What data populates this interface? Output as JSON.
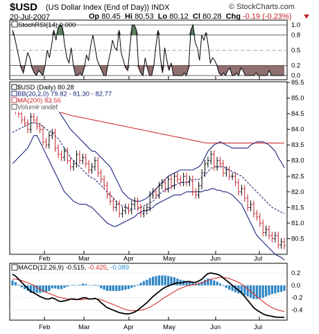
{
  "header": {
    "symbol": "$USD",
    "description": "(US Dollar Index (End of Day))",
    "exchange": "INDX",
    "brand": "© StockCharts.com",
    "date": "20-Jul-2007",
    "open_label": "Op",
    "open": "80.45",
    "high_label": "Hi",
    "high": "80.53",
    "low_label": "Lo",
    "low": "80.12",
    "close_label": "Cl",
    "close": "80.28",
    "chg_label": "Chg",
    "chg": "-0.19 (-0.23%)",
    "chg_color": "#c0202a"
  },
  "chart_data": [
    {
      "panel": "stochrsi",
      "type": "line",
      "legend": "StochRSI(14) 0.000",
      "ylim": [
        0,
        1
      ],
      "yticks": [
        1.0,
        0.8,
        0.5,
        0.2,
        0.0
      ],
      "ytick_labels": [
        "1.0",
        "0.8",
        "0.5",
        "0.2",
        "0.0"
      ],
      "upper_band": 0.8,
      "lower_band": 0.2,
      "fill_over": "#5f7f5f",
      "fill_under": "#8f6f6f",
      "values": [
        0.9,
        0.75,
        0.55,
        0.35,
        0.15,
        0.05,
        0.25,
        0.45,
        0.35,
        0.15,
        0.05,
        0.0,
        0.1,
        0.05,
        0.0,
        0.2,
        0.5,
        0.35,
        0.6,
        0.9,
        0.7,
        0.95,
        1.0,
        0.95,
        0.6,
        0.35,
        0.25,
        0.55,
        0.2,
        0.0,
        0.0,
        0.05,
        0.0,
        0.15,
        0.4,
        0.3,
        0.6,
        0.8,
        0.55,
        0.3,
        0.2,
        0.1,
        0.0,
        0.0,
        0.25,
        0.45,
        0.7,
        0.55,
        0.5,
        0.9,
        0.45,
        0.3,
        0.15,
        0.1,
        0.55,
        1.0,
        1.0,
        0.9,
        0.15,
        0.05,
        0.0,
        0.35,
        0.15,
        0.0,
        0.0,
        0.2,
        0.6,
        0.9,
        0.35,
        0.05,
        0.55,
        0.3,
        0.1,
        0.25,
        0.0,
        0.0,
        0.0,
        0.0,
        0.0,
        0.05,
        0.0,
        0.15,
        0.9,
        1.0,
        0.65,
        0.55,
        0.3,
        0.8,
        0.7,
        0.85,
        0.6,
        0.25,
        0.35,
        0.3,
        0.2,
        0.05,
        0.0,
        0.05,
        0.0,
        0.1,
        0.15,
        0.0,
        0.0,
        0.05,
        0.0,
        0.15,
        0.1,
        0.0,
        0.0,
        0.0,
        0.0,
        0.0,
        0.05,
        0.0,
        0.0,
        0.0,
        0.0,
        0.0,
        0.1,
        0.0,
        0.0,
        0.0,
        0.0,
        0.0,
        0.0,
        0.0
      ]
    },
    {
      "panel": "price",
      "type": "ohlc",
      "legend": [
        "$USD (Daily) 80.28",
        "BB(20,2.0) 79.82 - 81.30 - 82.77",
        "MA(200) 83.56",
        "Volume undef"
      ],
      "legend_colors": [
        "#000000",
        "#1a237e",
        "#d32f2f",
        "#555555"
      ],
      "ylim": [
        80.0,
        85.5
      ],
      "yticks": [
        85.5,
        85.0,
        84.5,
        84.0,
        83.5,
        83.0,
        82.5,
        82.0,
        81.5,
        81.0,
        80.5
      ],
      "ytick_labels": [
        "85.5",
        "85.0",
        "84.5",
        "84.0",
        "83.5",
        "83.0",
        "82.5",
        "82.0",
        "81.5",
        "81.0",
        "80.5"
      ],
      "x_labels": [
        "Feb",
        "Mar",
        "Apr",
        "May",
        "Jun",
        "Jul"
      ],
      "close": [
        84.8,
        84.6,
        84.5,
        84.3,
        84.2,
        84.0,
        84.4,
        84.3,
        84.1,
        84.0,
        83.6,
        83.5,
        83.8,
        83.9,
        83.4,
        83.2,
        83.1,
        83.3,
        83.0,
        82.8,
        82.9,
        83.2,
        83.0,
        83.1,
        82.9,
        82.7,
        82.8,
        83.0,
        82.6,
        82.4,
        82.2,
        81.9,
        81.7,
        81.5,
        81.6,
        81.3,
        81.4,
        81.5,
        81.4,
        81.6,
        81.7,
        81.5,
        81.3,
        81.4,
        81.5,
        81.9,
        82.0,
        81.9,
        82.2,
        82.3,
        82.1,
        82.4,
        82.2,
        82.5,
        82.4,
        82.3,
        82.5,
        82.3,
        82.4,
        82.0,
        81.9,
        82.2,
        82.6,
        82.9,
        83.0,
        83.2,
        82.8,
        83.0,
        82.9,
        82.6,
        82.7,
        82.5,
        82.5,
        82.3,
        82.0,
        82.1,
        81.8,
        81.5,
        81.6,
        81.3,
        81.2,
        81.0,
        80.7,
        80.8,
        80.6,
        80.5,
        80.6,
        80.3,
        80.4,
        80.28
      ],
      "ma200": [
        85.0,
        84.97,
        84.95,
        84.92,
        84.9,
        84.87,
        84.84,
        84.81,
        84.78,
        84.75,
        84.72,
        84.69,
        84.66,
        84.63,
        84.6,
        84.57,
        84.54,
        84.51,
        84.48,
        84.45,
        84.43,
        84.41,
        84.39,
        84.37,
        84.35,
        84.33,
        84.31,
        84.29,
        84.27,
        84.25,
        84.23,
        84.21,
        84.19,
        84.17,
        84.15,
        84.13,
        84.11,
        84.09,
        84.07,
        84.05,
        84.03,
        84.01,
        83.99,
        83.97,
        83.95,
        83.93,
        83.91,
        83.89,
        83.87,
        83.85,
        83.83,
        83.81,
        83.79,
        83.77,
        83.75,
        83.73,
        83.71,
        83.69,
        83.67,
        83.65,
        83.63,
        83.61,
        83.59,
        83.57,
        83.56,
        83.56,
        83.56,
        83.56,
        83.56,
        83.56,
        83.56,
        83.56,
        83.56,
        83.56,
        83.56,
        83.56,
        83.56,
        83.56,
        83.56,
        83.56,
        83.56,
        83.56,
        83.56,
        83.56,
        83.56,
        83.56,
        83.56,
        83.56,
        83.56,
        83.56
      ],
      "bb_upper": [
        84.9,
        84.9,
        84.9,
        84.95,
        85.0,
        85.05,
        85.1,
        85.1,
        85.1,
        85.1,
        85.05,
        85.0,
        84.9,
        84.8,
        84.7,
        84.6,
        84.45,
        84.3,
        84.15,
        84.0,
        83.9,
        83.8,
        83.7,
        83.6,
        83.5,
        83.4,
        83.3,
        83.3,
        83.2,
        83.1,
        83.0,
        82.9,
        82.8,
        82.6,
        82.4,
        82.2,
        82.0,
        81.9,
        81.8,
        81.75,
        81.7,
        81.7,
        81.7,
        81.75,
        81.8,
        81.9,
        82.0,
        82.1,
        82.2,
        82.3,
        82.4,
        82.5,
        82.55,
        82.6,
        82.65,
        82.7,
        82.7,
        82.7,
        82.7,
        82.7,
        82.75,
        82.8,
        82.9,
        83.1,
        83.3,
        83.4,
        83.5,
        83.55,
        83.6,
        83.55,
        83.5,
        83.45,
        83.4,
        83.4,
        83.4,
        83.4,
        83.4,
        83.4,
        83.5,
        83.55,
        83.6,
        83.6,
        83.6,
        83.55,
        83.5,
        83.4,
        83.3,
        83.1,
        82.95,
        82.77
      ],
      "bb_lower": [
        82.9,
        83.0,
        83.1,
        83.2,
        83.3,
        83.4,
        83.6,
        83.8,
        83.8,
        83.6,
        83.4,
        83.2,
        83.0,
        82.8,
        82.6,
        82.4,
        82.2,
        82.0,
        81.9,
        81.8,
        81.7,
        81.65,
        81.6,
        81.6,
        81.6,
        81.55,
        81.5,
        81.4,
        81.3,
        81.2,
        81.1,
        81.0,
        80.95,
        80.9,
        80.9,
        80.95,
        81.0,
        81.05,
        81.1,
        81.15,
        81.2,
        81.3,
        81.35,
        81.4,
        81.4,
        81.45,
        81.5,
        81.6,
        81.65,
        81.7,
        81.75,
        81.8,
        81.85,
        81.9,
        81.9,
        81.9,
        81.95,
        82.0,
        82.0,
        82.0,
        82.0,
        82.0,
        82.0,
        82.05,
        82.05,
        82.1,
        82.1,
        82.05,
        82.05,
        82.0,
        82.0,
        81.95,
        81.9,
        81.8,
        81.7,
        81.6,
        81.4,
        81.2,
        81.0,
        80.8,
        80.6,
        80.5,
        80.4,
        80.3,
        80.2,
        80.1,
        80.0,
        79.95,
        79.9,
        79.82
      ],
      "bb_mid": [
        83.9,
        83.95,
        84.0,
        84.05,
        84.1,
        84.15,
        84.2,
        84.2,
        84.2,
        84.15,
        84.1,
        84.0,
        83.95,
        83.9,
        83.8,
        83.7,
        83.55,
        83.4,
        83.25,
        83.1,
        83.0,
        82.9,
        82.8,
        82.7,
        82.6,
        82.5,
        82.45,
        82.4,
        82.3,
        82.2,
        82.1,
        82.0,
        81.9,
        81.8,
        81.7,
        81.6,
        81.55,
        81.5,
        81.45,
        81.45,
        81.45,
        81.45,
        81.5,
        81.55,
        81.6,
        81.65,
        81.7,
        81.8,
        81.9,
        82.0,
        82.05,
        82.1,
        82.15,
        82.2,
        82.25,
        82.3,
        82.3,
        82.3,
        82.35,
        82.35,
        82.4,
        82.4,
        82.45,
        82.55,
        82.65,
        82.75,
        82.8,
        82.8,
        82.8,
        82.8,
        82.75,
        82.7,
        82.65,
        82.6,
        82.55,
        82.5,
        82.4,
        82.3,
        82.2,
        82.1,
        82.0,
        81.9,
        81.8,
        81.7,
        81.6,
        81.5,
        81.45,
        81.4,
        81.35,
        81.3
      ]
    },
    {
      "panel": "macd",
      "type": "line",
      "legend_prefix": "MACD(12,26,9)",
      "legend_values": [
        "-0.515",
        "-0.425",
        "-0.089"
      ],
      "legend_colors": [
        "#000000",
        "#d32f2f",
        "#1f8fc7"
      ],
      "ylim": [
        -0.55,
        0.3
      ],
      "yticks": [
        0.2,
        0.0,
        -0.2,
        -0.4
      ],
      "ytick_labels": [
        "0.2",
        "0.0",
        "-0.2",
        "-0.4"
      ],
      "x_labels": [
        "Feb",
        "Mar",
        "Apr",
        "May",
        "Jun",
        "Jul"
      ],
      "macd": [
        0.18,
        0.15,
        0.1,
        0.05,
        0.0,
        -0.05,
        -0.1,
        -0.12,
        -0.15,
        -0.18,
        -0.2,
        -0.22,
        -0.22,
        -0.2,
        -0.22,
        -0.25,
        -0.26,
        -0.25,
        -0.24,
        -0.22,
        -0.22,
        -0.23,
        -0.22,
        -0.2,
        -0.2,
        -0.22,
        -0.22,
        -0.21,
        -0.23,
        -0.28,
        -0.32,
        -0.36,
        -0.38,
        -0.4,
        -0.42,
        -0.44,
        -0.45,
        -0.46,
        -0.46,
        -0.45,
        -0.43,
        -0.4,
        -0.36,
        -0.32,
        -0.28,
        -0.23,
        -0.18,
        -0.14,
        -0.1,
        -0.06,
        -0.03,
        -0.01,
        0.01,
        0.03,
        0.04,
        0.04,
        0.05,
        0.06,
        0.06,
        0.05,
        0.05,
        0.07,
        0.1,
        0.15,
        0.19,
        0.2,
        0.19,
        0.18,
        0.16,
        0.12,
        0.08,
        0.04,
        0.0,
        -0.04,
        -0.08,
        -0.12,
        -0.18,
        -0.24,
        -0.3,
        -0.36,
        -0.4,
        -0.43,
        -0.46,
        -0.48,
        -0.49,
        -0.5,
        -0.51,
        -0.515,
        -0.515,
        -0.515
      ],
      "signal": [
        0.1,
        0.1,
        0.09,
        0.08,
        0.06,
        0.04,
        0.02,
        0.0,
        -0.03,
        -0.06,
        -0.09,
        -0.11,
        -0.13,
        -0.15,
        -0.17,
        -0.19,
        -0.2,
        -0.21,
        -0.22,
        -0.22,
        -0.23,
        -0.23,
        -0.23,
        -0.23,
        -0.22,
        -0.22,
        -0.22,
        -0.22,
        -0.22,
        -0.23,
        -0.25,
        -0.27,
        -0.29,
        -0.31,
        -0.33,
        -0.35,
        -0.37,
        -0.39,
        -0.4,
        -0.41,
        -0.41,
        -0.41,
        -0.4,
        -0.39,
        -0.37,
        -0.35,
        -0.32,
        -0.29,
        -0.26,
        -0.22,
        -0.19,
        -0.16,
        -0.13,
        -0.1,
        -0.07,
        -0.05,
        -0.03,
        -0.01,
        0.0,
        0.01,
        0.02,
        0.03,
        0.04,
        0.06,
        0.08,
        0.1,
        0.11,
        0.12,
        0.13,
        0.13,
        0.12,
        0.11,
        0.09,
        0.07,
        0.05,
        0.02,
        -0.02,
        -0.06,
        -0.1,
        -0.14,
        -0.18,
        -0.22,
        -0.26,
        -0.3,
        -0.33,
        -0.36,
        -0.38,
        -0.4,
        -0.41,
        -0.425
      ],
      "histogram": [
        0.08,
        0.05,
        0.01,
        -0.03,
        -0.06,
        -0.09,
        -0.12,
        -0.12,
        -0.12,
        -0.12,
        -0.11,
        -0.11,
        -0.09,
        -0.05,
        -0.05,
        -0.06,
        -0.06,
        -0.04,
        -0.02,
        0.0,
        0.01,
        0.0,
        0.01,
        0.03,
        0.02,
        0.0,
        0.0,
        0.01,
        -0.01,
        -0.05,
        -0.07,
        -0.09,
        -0.09,
        -0.09,
        -0.09,
        -0.09,
        -0.08,
        -0.07,
        -0.06,
        -0.04,
        -0.02,
        0.01,
        0.04,
        0.07,
        0.09,
        0.12,
        0.14,
        0.15,
        0.16,
        0.16,
        0.16,
        0.15,
        0.14,
        0.13,
        0.11,
        0.09,
        0.08,
        0.07,
        0.06,
        0.04,
        0.03,
        0.04,
        0.06,
        0.09,
        0.11,
        0.1,
        0.08,
        0.06,
        0.03,
        -0.01,
        -0.04,
        -0.07,
        -0.09,
        -0.11,
        -0.13,
        -0.14,
        -0.16,
        -0.18,
        -0.2,
        -0.22,
        -0.22,
        -0.21,
        -0.2,
        -0.18,
        -0.16,
        -0.14,
        -0.13,
        -0.115,
        -0.105,
        -0.089
      ]
    }
  ]
}
